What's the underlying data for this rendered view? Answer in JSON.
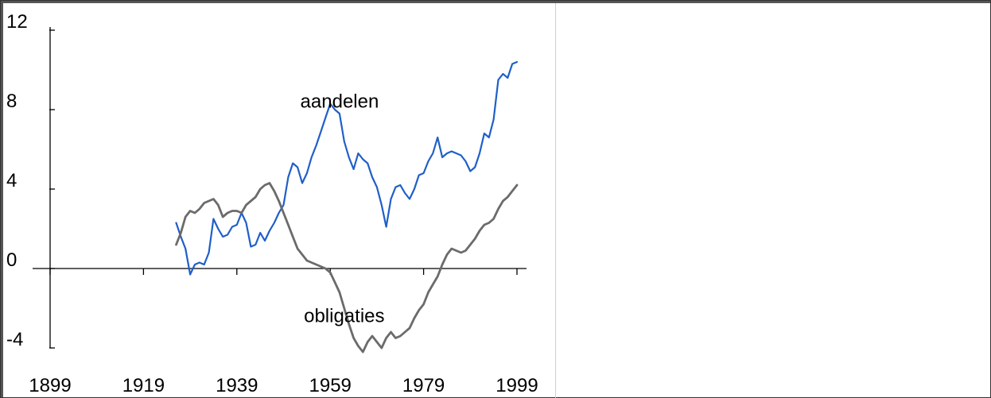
{
  "chart_data": {
    "type": "line",
    "title": "",
    "xlabel": "",
    "ylabel": "",
    "xlim": [
      1899,
      1999
    ],
    "ylim": [
      -4,
      12
    ],
    "x_ticks": [
      1899,
      1919,
      1939,
      1959,
      1979,
      1999
    ],
    "y_ticks": [
      -4,
      0,
      4,
      8,
      12
    ],
    "grid": false,
    "series": [
      {
        "name": "aandelen",
        "color": "#1f5fc8",
        "x": [
          1926,
          1927,
          1928,
          1929,
          1930,
          1931,
          1932,
          1933,
          1934,
          1935,
          1936,
          1937,
          1938,
          1939,
          1940,
          1941,
          1942,
          1943,
          1944,
          1945,
          1946,
          1947,
          1948,
          1949,
          1950,
          1951,
          1952,
          1953,
          1954,
          1955,
          1956,
          1957,
          1958,
          1959,
          1960,
          1961,
          1962,
          1963,
          1964,
          1965,
          1966,
          1967,
          1968,
          1969,
          1970,
          1971,
          1972,
          1973,
          1974,
          1975,
          1976,
          1977,
          1978,
          1979,
          1980,
          1981,
          1982,
          1983,
          1984,
          1985,
          1986,
          1987,
          1988,
          1989,
          1990,
          1991,
          1992,
          1993,
          1994,
          1995,
          1996,
          1997,
          1998,
          1999
        ],
        "y": [
          2.3,
          1.6,
          1.0,
          -0.3,
          0.2,
          0.3,
          0.2,
          0.8,
          2.5,
          2.0,
          1.6,
          1.7,
          2.1,
          2.2,
          2.8,
          2.3,
          1.1,
          1.2,
          1.8,
          1.4,
          1.9,
          2.3,
          2.8,
          3.2,
          4.6,
          5.3,
          5.1,
          4.3,
          4.8,
          5.6,
          6.2,
          6.9,
          7.6,
          8.3,
          8.0,
          7.8,
          6.4,
          5.6,
          5.0,
          5.8,
          5.5,
          5.3,
          4.6,
          4.1,
          3.2,
          2.1,
          3.5,
          4.1,
          4.2,
          3.8,
          3.5,
          4.0,
          4.7,
          4.8,
          5.4,
          5.8,
          6.6,
          5.6,
          5.8,
          5.9,
          5.8,
          5.7,
          5.4,
          4.9,
          5.1,
          5.8,
          6.8,
          6.6,
          7.5,
          9.5,
          9.8,
          9.6,
          10.3,
          10.4
        ]
      },
      {
        "name": "obligaties",
        "color": "#6b6b6b",
        "x": [
          1926,
          1927,
          1928,
          1929,
          1930,
          1931,
          1932,
          1933,
          1934,
          1935,
          1936,
          1937,
          1938,
          1939,
          1940,
          1941,
          1942,
          1943,
          1944,
          1945,
          1946,
          1947,
          1948,
          1949,
          1950,
          1951,
          1952,
          1953,
          1954,
          1955,
          1956,
          1957,
          1958,
          1959,
          1960,
          1961,
          1962,
          1963,
          1964,
          1965,
          1966,
          1967,
          1968,
          1969,
          1970,
          1971,
          1972,
          1973,
          1974,
          1975,
          1976,
          1977,
          1978,
          1979,
          1980,
          1981,
          1982,
          1983,
          1984,
          1985,
          1986,
          1987,
          1988,
          1989,
          1990,
          1991,
          1992,
          1993,
          1994,
          1995,
          1996,
          1997,
          1998,
          1999
        ],
        "y": [
          1.2,
          1.8,
          2.6,
          2.9,
          2.8,
          3.0,
          3.3,
          3.4,
          3.5,
          3.2,
          2.6,
          2.8,
          2.9,
          2.9,
          2.8,
          3.2,
          3.4,
          3.6,
          4.0,
          4.2,
          4.3,
          3.9,
          3.4,
          2.8,
          2.2,
          1.6,
          1.0,
          0.7,
          0.4,
          0.3,
          0.2,
          0.1,
          0.0,
          -0.2,
          -0.7,
          -1.2,
          -2.0,
          -2.8,
          -3.5,
          -3.9,
          -4.2,
          -3.7,
          -3.4,
          -3.7,
          -4.0,
          -3.5,
          -3.2,
          -3.5,
          -3.4,
          -3.2,
          -3.0,
          -2.5,
          -2.1,
          -1.8,
          -1.2,
          -0.8,
          -0.4,
          0.2,
          0.7,
          1.0,
          0.9,
          0.8,
          0.9,
          1.2,
          1.5,
          1.9,
          2.2,
          2.3,
          2.5,
          3.0,
          3.4,
          3.6,
          3.9,
          4.2
        ]
      }
    ],
    "annotations": [
      {
        "text": "aandelen",
        "x": 1961,
        "y": 8.1
      },
      {
        "text": "obligaties",
        "x": 1962,
        "y": -2.7
      }
    ]
  }
}
